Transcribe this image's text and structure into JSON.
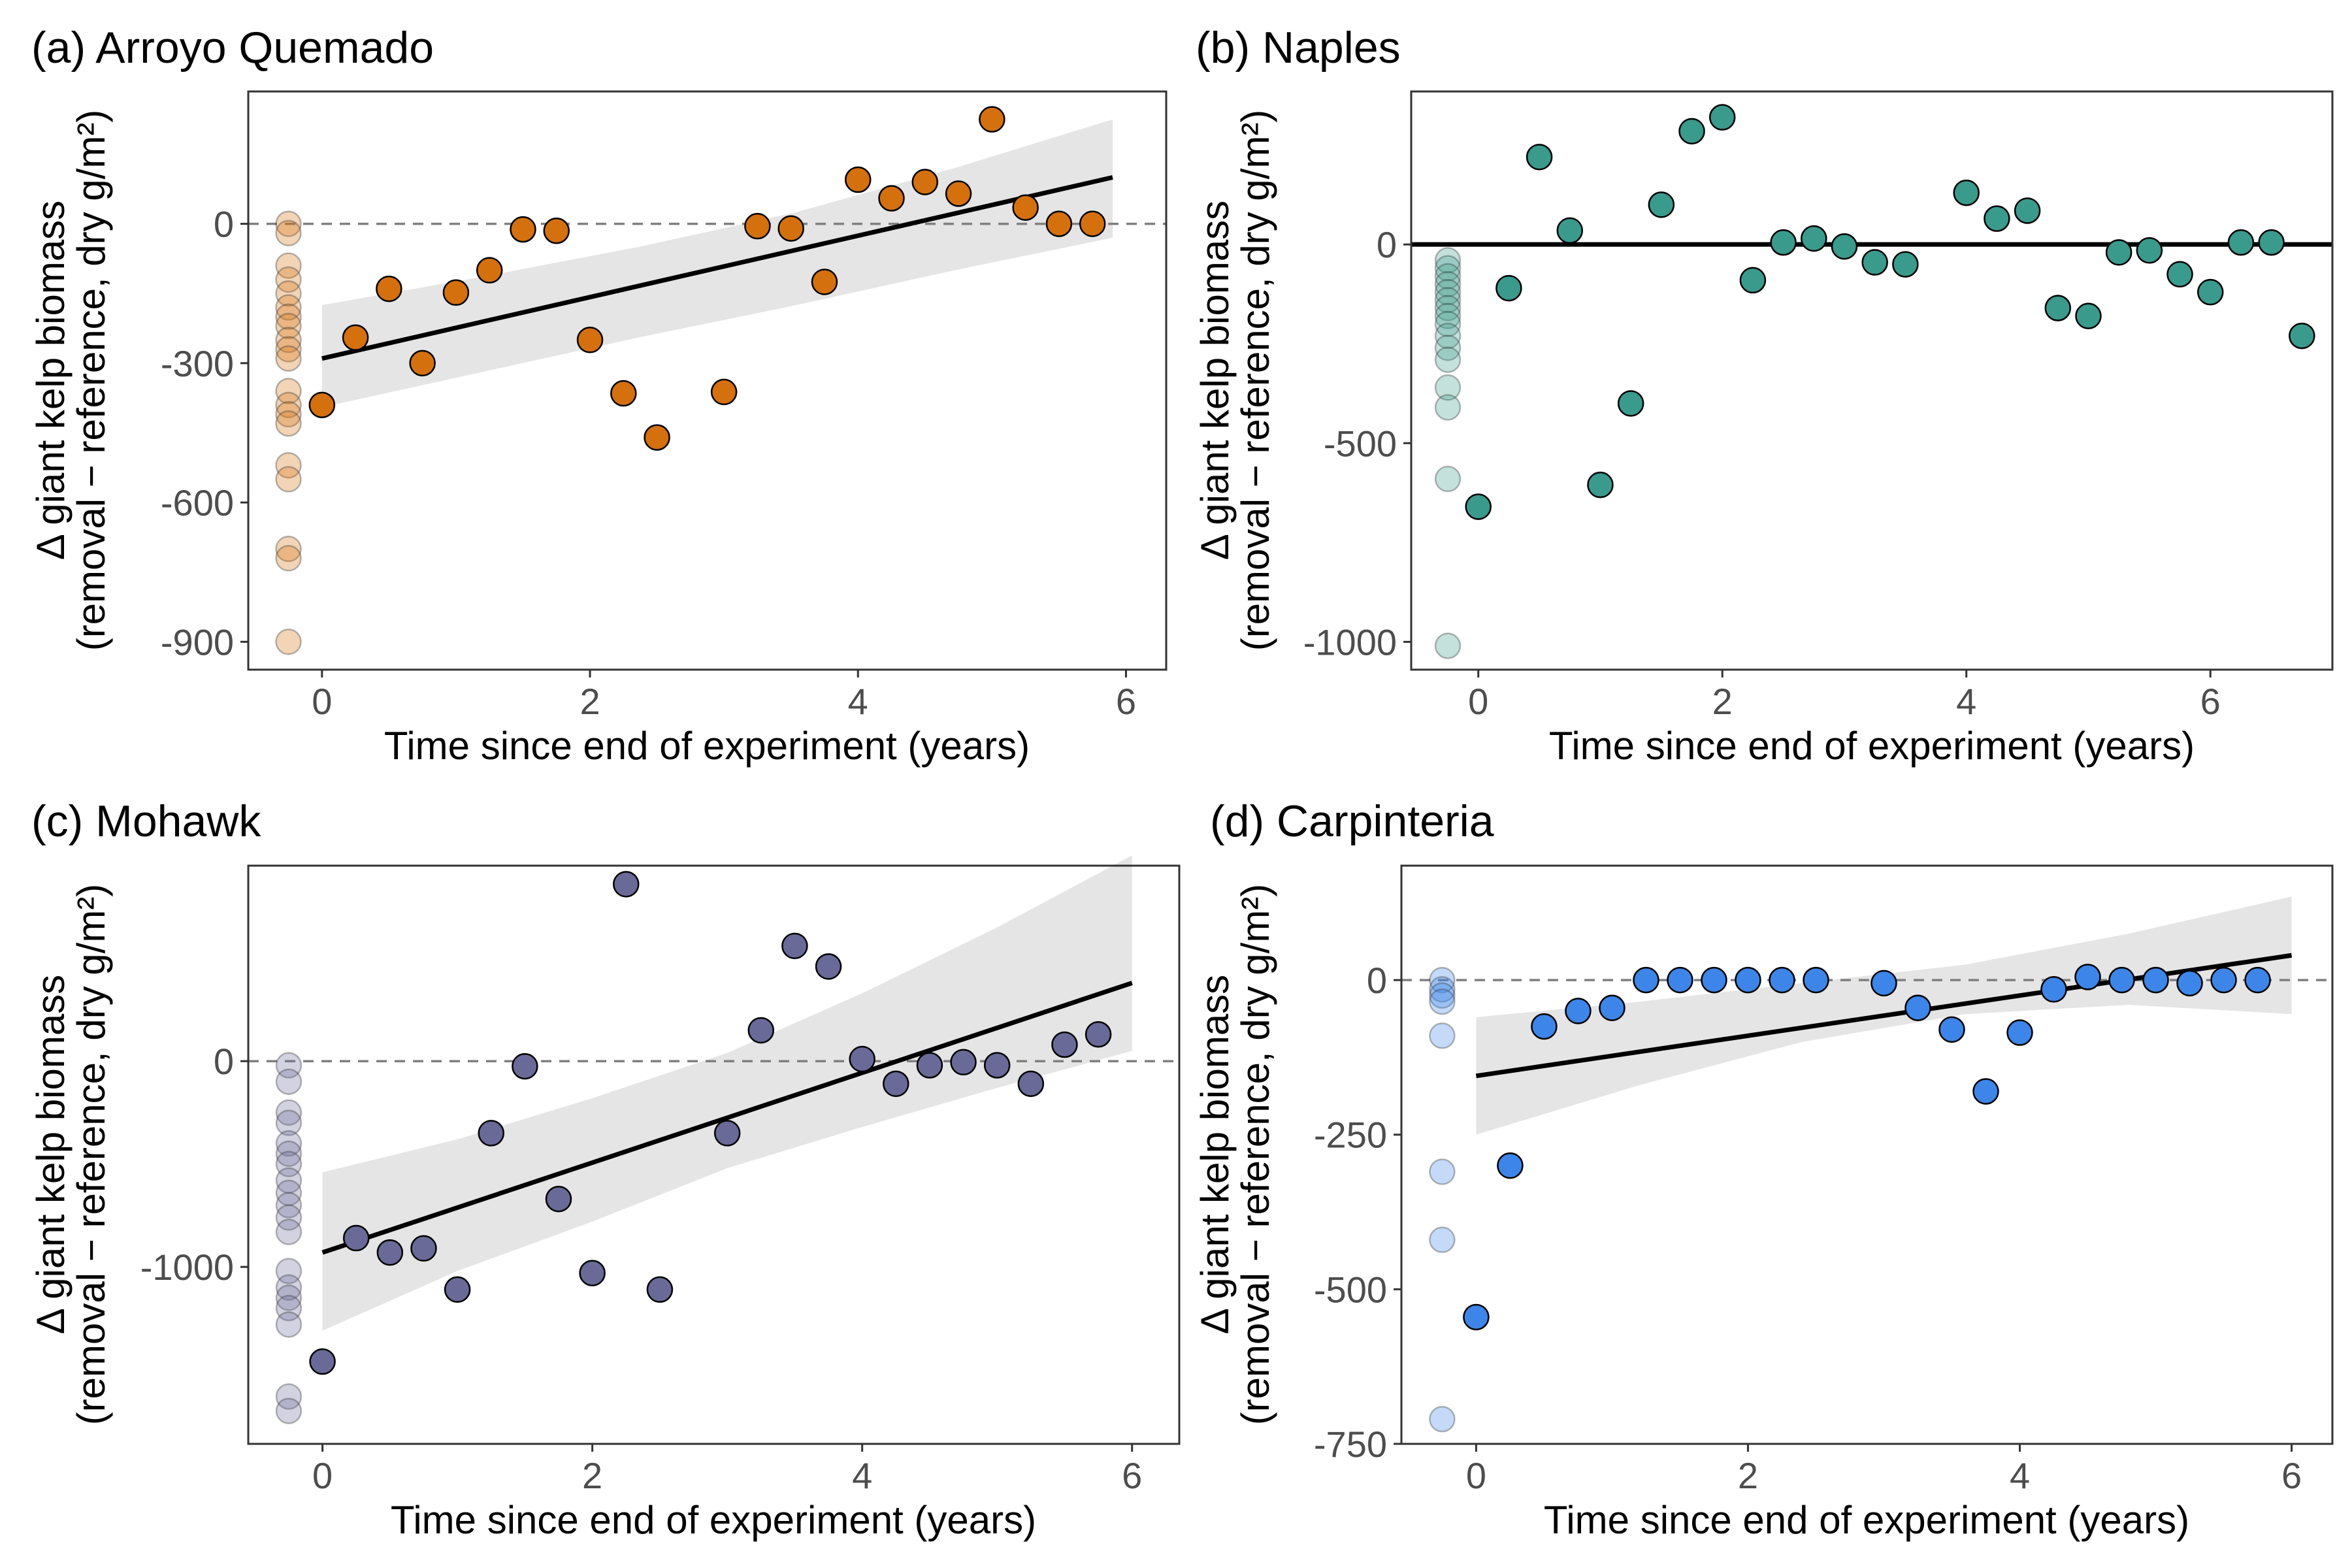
{
  "axis_labels": {
    "x": "Time since end of experiment (years)",
    "y_line1": "Δ giant kelp biomass",
    "y_line2": "(removal − reference, dry g/m²)"
  },
  "colors": {
    "arroyo_quemado": "#D5700F",
    "naples": "#3A9A8C",
    "mohawk": "#6A6A98",
    "carpinteria": "#3D85E8",
    "fit_line": "#000000",
    "ci_band": "#E5E5E5",
    "zero_line": "#808080"
  },
  "chart_data": [
    {
      "type": "scatter",
      "id": "a",
      "title": "(a) Arroyo Quemado",
      "xlabel": "Time since end of experiment (years)",
      "ylabel": "Δ giant kelp biomass (removal − reference, dry g/m²)",
      "xlim": [
        -0.55,
        6.3
      ],
      "ylim": [
        -960,
        285
      ],
      "xticks": [
        0,
        2,
        4,
        6
      ],
      "yticks": [
        0,
        -300,
        -600,
        -900
      ],
      "ytick_labels": [
        "0",
        "-300",
        "-600",
        "-900"
      ],
      "zero_line": "dashed",
      "color": "#D5700F",
      "during_experiment": [
        0,
        -20,
        -90,
        -120,
        -150,
        -180,
        -200,
        -220,
        -250,
        -270,
        -290,
        -360,
        -390,
        -410,
        -430,
        -520,
        -550,
        -700,
        -720,
        -900
      ],
      "post_experiment": {
        "x": [
          0,
          0.25,
          0.5,
          0.75,
          1,
          1.25,
          1.5,
          1.75,
          2,
          2.25,
          2.5,
          3,
          3.25,
          3.5,
          3.75,
          4,
          4.25,
          4.5,
          4.75,
          5,
          5.25,
          5.5,
          5.75
        ],
        "y": [
          -390,
          -245,
          -140,
          -300,
          -148,
          -100,
          -12,
          -15,
          -250,
          -365,
          -460,
          -362,
          -5,
          -10,
          -125,
          95,
          55,
          90,
          65,
          225,
          35,
          0,
          0
        ]
      },
      "fit": {
        "x": [
          0,
          5.9
        ],
        "y": [
          -290,
          100
        ]
      },
      "ci_upper": [
        -175,
        -115,
        -50,
        25,
        120,
        225
      ],
      "ci_lower": [
        -395,
        -320,
        -245,
        -175,
        -100,
        -30
      ],
      "ci_x": [
        0,
        1.18,
        2.36,
        3.54,
        4.72,
        5.9
      ]
    },
    {
      "type": "scatter",
      "id": "b",
      "title": "(b) Naples",
      "xlabel": "Time since end of experiment (years)",
      "ylabel": "Δ giant kelp biomass (removal − reference, dry g/m²)",
      "xlim": [
        -0.55,
        7.0
      ],
      "ylim": [
        -1070,
        385
      ],
      "xticks": [
        0,
        2,
        4,
        6
      ],
      "yticks": [
        0,
        -500,
        -1000
      ],
      "ytick_labels": [
        "0",
        "-500",
        "-1000"
      ],
      "zero_line": "solid",
      "color": "#3A9A8C",
      "during_experiment": [
        -40,
        -60,
        -80,
        -100,
        -120,
        -140,
        -160,
        -180,
        -200,
        -230,
        -260,
        -290,
        -360,
        -410,
        -590,
        -1010
      ],
      "post_experiment": {
        "x": [
          0,
          0.25,
          0.5,
          0.75,
          1,
          1.25,
          1.5,
          1.75,
          2,
          2.25,
          2.5,
          2.75,
          3,
          3.25,
          3.5,
          4,
          4.25,
          4.5,
          4.75,
          5,
          5.25,
          5.5,
          5.75,
          6,
          6.25,
          6.5,
          6.75
        ],
        "y": [
          -660,
          -110,
          220,
          35,
          -605,
          -400,
          100,
          285,
          320,
          -90,
          5,
          15,
          -5,
          -45,
          -50,
          130,
          65,
          85,
          -160,
          -180,
          -20,
          -15,
          -75,
          -120,
          5,
          5,
          -230
        ]
      }
    },
    {
      "type": "scatter",
      "id": "c",
      "title": "(c) Mohawk",
      "xlabel": "Time since end of experiment (years)",
      "ylabel": "Δ giant kelp biomass (removal − reference, dry g/m²)",
      "xlim": [
        -0.55,
        6.35
      ],
      "ylim": [
        -1860,
        950
      ],
      "xticks": [
        0,
        2,
        4,
        6
      ],
      "yticks": [
        0,
        -1000
      ],
      "ytick_labels": [
        "0",
        "-1000"
      ],
      "zero_line": "dashed",
      "color": "#6A6A98",
      "during_experiment": [
        -20,
        -100,
        -250,
        -300,
        -400,
        -450,
        -500,
        -580,
        -640,
        -700,
        -760,
        -830,
        -1020,
        -1100,
        -1150,
        -1200,
        -1280,
        -1630,
        -1700
      ],
      "post_experiment": {
        "x": [
          0,
          0.25,
          0.5,
          0.75,
          1,
          1.25,
          1.5,
          1.75,
          2,
          2.25,
          2.5,
          3,
          3.25,
          3.5,
          3.75,
          4,
          4.25,
          4.5,
          4.75,
          5,
          5.25,
          5.5,
          5.75
        ],
        "y": [
          -1460,
          -860,
          -930,
          -910,
          -1110,
          -350,
          -25,
          -670,
          -1030,
          860,
          -1110,
          -350,
          150,
          560,
          460,
          10,
          -110,
          -20,
          -5,
          -20,
          -110,
          80,
          130
        ]
      },
      "fit": {
        "x": [
          0,
          6
        ],
        "y": [
          -930,
          380
        ]
      },
      "ci_upper": [
        -540,
        -380,
        -180,
        40,
        330,
        650,
        1000
      ],
      "ci_lower": [
        -1310,
        -1020,
        -780,
        -520,
        -320,
        -130,
        50
      ],
      "ci_x": [
        0,
        1,
        2,
        3,
        4,
        5,
        6
      ]
    },
    {
      "type": "scatter",
      "id": "d",
      "title": "(d) Carpinteria",
      "xlabel": "Time since end of experiment (years)",
      "ylabel": "Δ giant kelp biomass (removal − reference, dry g/m²)",
      "xlim": [
        -0.55,
        6.3
      ],
      "ylim": [
        -750,
        185
      ],
      "xticks": [
        0,
        2,
        4,
        6
      ],
      "yticks": [
        0,
        -250,
        -500,
        -750
      ],
      "ytick_labels": [
        "0",
        "-250",
        "-500",
        "-750"
      ],
      "zero_line": "dashed",
      "color": "#3D85E8",
      "during_experiment": [
        0,
        -15,
        -25,
        -35,
        -90,
        -310,
        -420,
        -710
      ],
      "post_experiment": {
        "x": [
          0,
          0.25,
          0.5,
          0.75,
          1,
          1.25,
          1.5,
          1.75,
          2,
          2.25,
          2.5,
          3,
          3.25,
          3.5,
          3.75,
          4,
          4.25,
          4.5,
          4.75,
          5,
          5.25,
          5.5,
          5.75
        ],
        "y": [
          -545,
          -300,
          -75,
          -50,
          -45,
          0,
          0,
          0,
          0,
          0,
          0,
          -5,
          -45,
          -80,
          -180,
          -85,
          -15,
          5,
          0,
          0,
          -5,
          0,
          0
        ]
      },
      "fit": {
        "x": [
          0,
          6
        ],
        "y": [
          -155,
          40
        ]
      },
      "ci_upper": [
        -60,
        -35,
        -5,
        25,
        75,
        135
      ],
      "ci_lower": [
        -250,
        -170,
        -100,
        -55,
        -40,
        -55
      ],
      "ci_x": [
        0,
        1.2,
        2.4,
        3.6,
        4.8,
        6
      ]
    }
  ]
}
